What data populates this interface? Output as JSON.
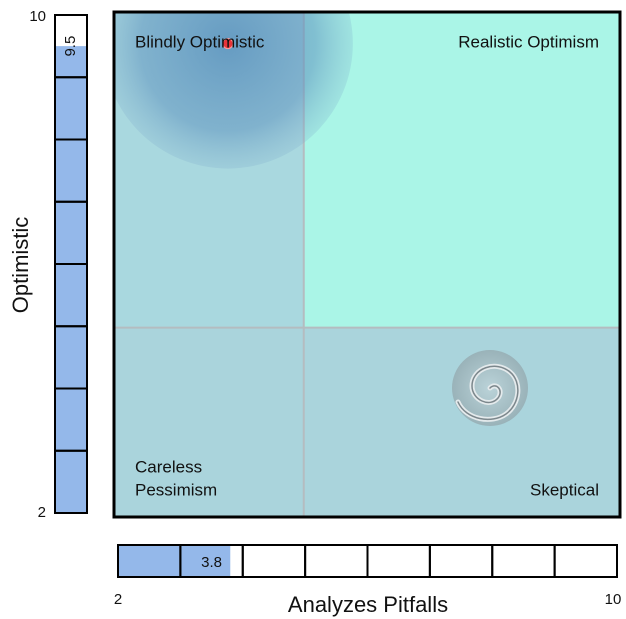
{
  "x_axis": {
    "title": "Analyzes Pitfalls",
    "min": 2,
    "max": 10
  },
  "y_axis": {
    "title": "Optimistic",
    "min": 2,
    "max": 10
  },
  "threshold": {
    "x": 5,
    "y": 5
  },
  "point": {
    "x": 3.8,
    "y": 9.5
  },
  "quadrants": {
    "top_left": "Blindly Optimistic",
    "top_right": "Realistic Optimism",
    "bottom_left": [
      "Careless",
      "Pessimism"
    ],
    "bottom_right": "Skeptical"
  }
}
